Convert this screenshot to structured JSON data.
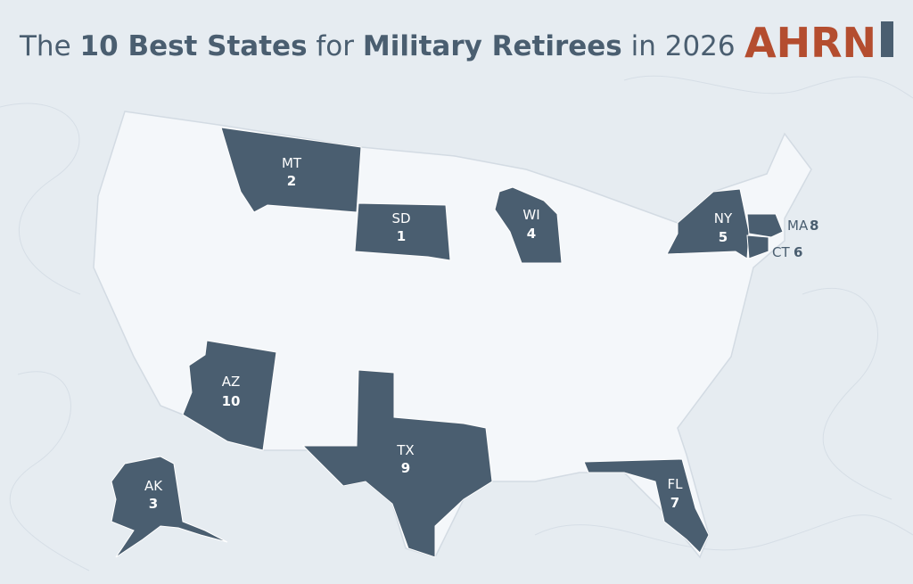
{
  "header": {
    "title": [
      "The ",
      "10 Best States",
      " for ",
      "Military Retirees",
      " in 2026"
    ]
  },
  "logo": "AHRN",
  "states": [
    {
      "abbr": "SD",
      "rank": 1
    },
    {
      "abbr": "MT",
      "rank": 2
    },
    {
      "abbr": "AK",
      "rank": 3
    },
    {
      "abbr": "WI",
      "rank": 4
    },
    {
      "abbr": "NY",
      "rank": 5
    },
    {
      "abbr": "CT",
      "rank": 6
    },
    {
      "abbr": "FL",
      "rank": 7
    },
    {
      "abbr": "MA",
      "rank": 8
    },
    {
      "abbr": "TX",
      "rank": 9
    },
    {
      "abbr": "AZ",
      "rank": 10
    }
  ]
}
